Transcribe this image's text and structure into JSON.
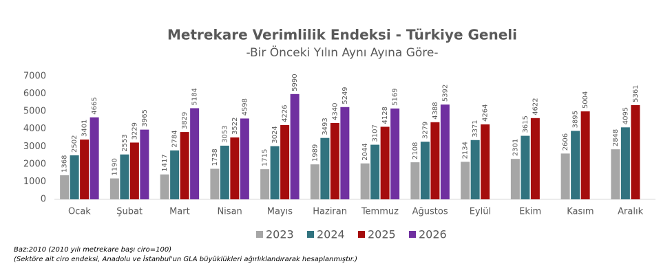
{
  "chart_data": {
    "type": "bar",
    "title": "Metrekare Verimlilik Endeksi - Türkiye Geneli",
    "subtitle": "-Bir Önceki Yılın Aynı Ayına Göre-",
    "categories": [
      "Ocak",
      "Şubat",
      "Mart",
      "Nisan",
      "Mayıs",
      "Haziran",
      "Temmuz",
      "Ağustos",
      "Eylül",
      "Ekim",
      "Kasım",
      "Aralık"
    ],
    "series": [
      {
        "name": "2023",
        "color": "#a6a6a6",
        "values": [
          1368,
          1190,
          1417,
          1738,
          1715,
          1989,
          2044,
          2108,
          2134,
          2301,
          2606,
          2848
        ]
      },
      {
        "name": "2024",
        "color": "#31737f",
        "values": [
          2502,
          2553,
          2784,
          3053,
          3024,
          3493,
          3107,
          3279,
          3371,
          3615,
          3895,
          4095
        ]
      },
      {
        "name": "2025",
        "color": "#a50d0d",
        "values": [
          3401,
          3229,
          3829,
          3522,
          4226,
          4340,
          4128,
          4388,
          4264,
          4622,
          5004,
          5361
        ]
      },
      {
        "name": "2026",
        "color": "#7030a0",
        "values": [
          4665,
          3965,
          5184,
          4598,
          5990,
          5249,
          5169,
          5392,
          null,
          null,
          null,
          null
        ]
      }
    ],
    "ylim": [
      0,
      7000
    ],
    "yticks": [
      0,
      1000,
      2000,
      3000,
      4000,
      5000,
      6000,
      7000
    ],
    "grid": false,
    "legend": "bottom",
    "notes": [
      "Baz:2010 (2010 yılı metrekare başı ciro=100)",
      "(Sektöre ait ciro endeksi, Anadolu ve İstanbul'un GLA büyüklükleri ağırlıklandırarak hesaplanmıştır.)"
    ]
  }
}
